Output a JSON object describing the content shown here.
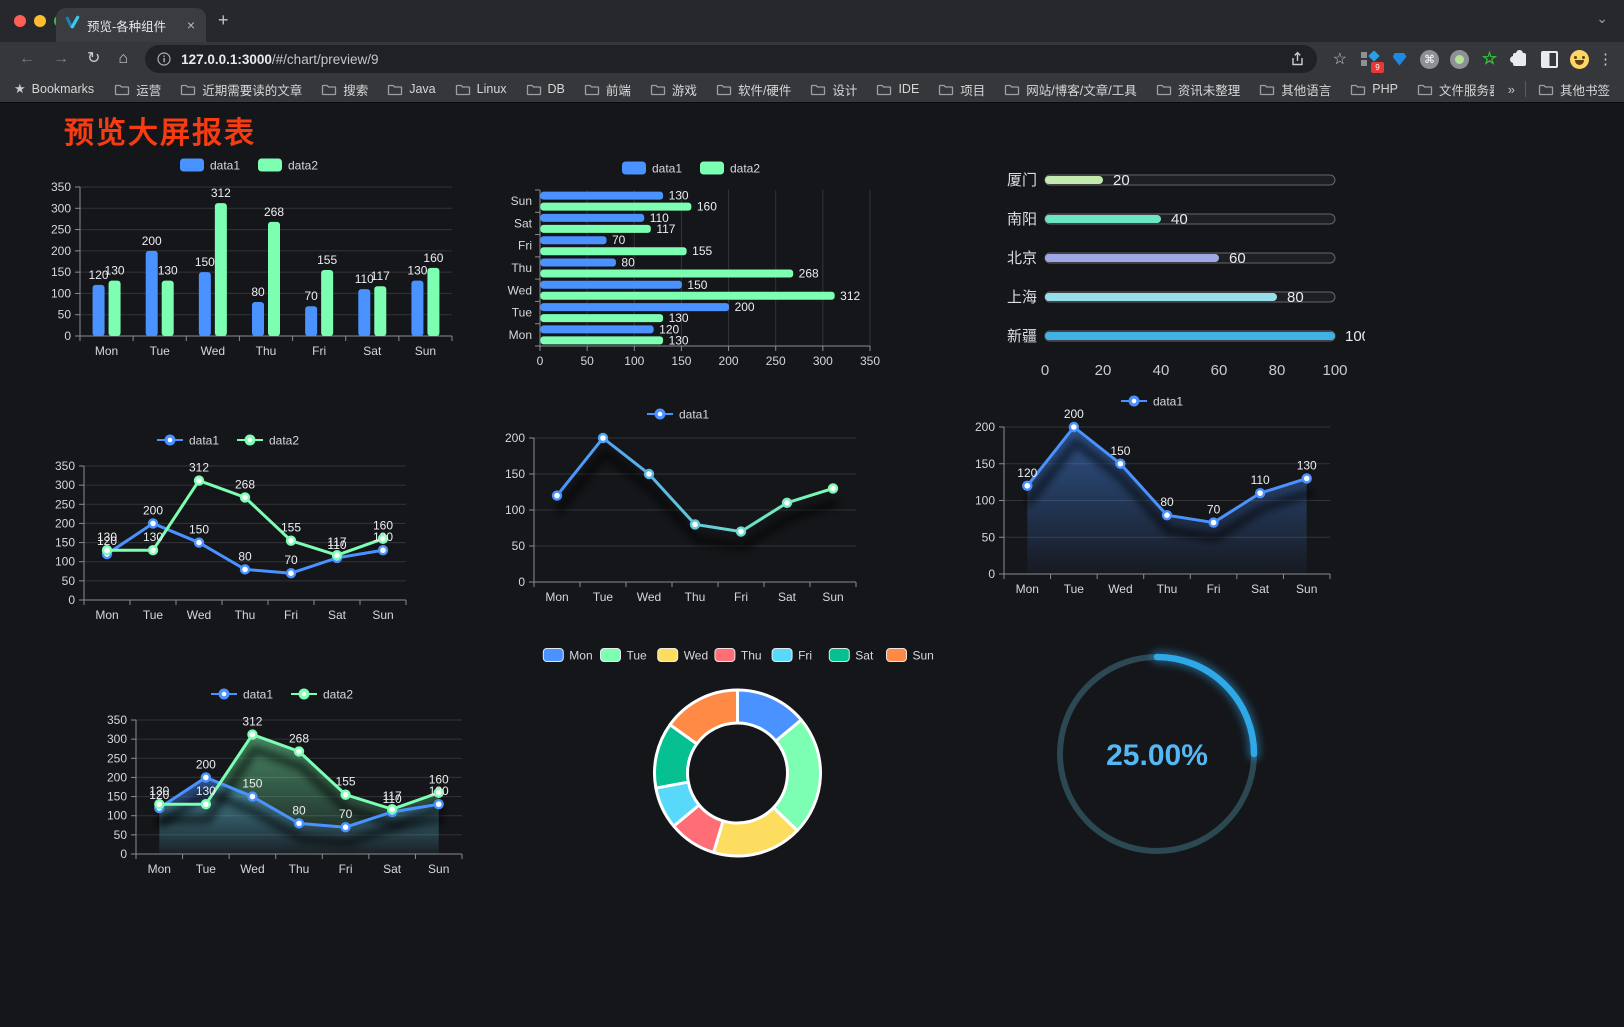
{
  "browser": {
    "traffic_lights": {
      "close": "#ff5f57",
      "minimize": "#febc2e",
      "zoom": "#28c840"
    },
    "tab_title": "预览-各种组件",
    "url_host": "127.0.0.1:3000",
    "url_path": "/#/chart/preview/9",
    "glyphs": {
      "close": "×",
      "plus": "+",
      "chevron": "⌄",
      "back": "←",
      "forward": "→",
      "reload": "↻",
      "home": "⌂",
      "star": "☆",
      "menu": "⋮",
      "overflow": "»",
      "bookmarks_star": "★",
      "cmd": "⌘"
    },
    "extension_badge": "9",
    "bookmarks": {
      "label": "Bookmarks",
      "folders": [
        "运营",
        "近期需要读的文章",
        "搜索",
        "Java",
        "Linux",
        "DB",
        "前端",
        "游戏",
        "软件/硬件",
        "设计",
        "IDE",
        "项目",
        "网站/博客/文章/工具",
        "资讯未整理",
        "其他语言",
        "PHP",
        "文件服务器"
      ],
      "other_label": "其他书签"
    }
  },
  "page": {
    "title": "预览大屏报表",
    "title_color": "#f83b11",
    "background": "#15161a"
  },
  "chart_data": [
    {
      "container": "c1",
      "type": "bar",
      "legend": [
        "data1",
        "data2"
      ],
      "categories": [
        "Mon",
        "Tue",
        "Wed",
        "Thu",
        "Fri",
        "Sat",
        "Sun"
      ],
      "series": [
        {
          "name": "data1",
          "color": "#4992ff",
          "values": [
            120,
            200,
            150,
            80,
            70,
            110,
            130
          ]
        },
        {
          "name": "data2",
          "color": "#7cffb2",
          "values": [
            130,
            130,
            312,
            268,
            155,
            117,
            160
          ]
        }
      ],
      "ylim": [
        0,
        350
      ],
      "ystep": 50,
      "labels": true,
      "grid": true
    },
    {
      "container": "c2",
      "type": "hbar",
      "legend": [
        "data1",
        "data2"
      ],
      "categories": [
        "Mon",
        "Tue",
        "Wed",
        "Thu",
        "Fri",
        "Sat",
        "Sun"
      ],
      "series": [
        {
          "name": "data1",
          "color": "#4992ff",
          "values": [
            120,
            200,
            150,
            80,
            70,
            110,
            130
          ]
        },
        {
          "name": "data2",
          "color": "#7cffb2",
          "values": [
            130,
            130,
            312,
            268,
            155,
            117,
            160
          ]
        }
      ],
      "xlim": [
        0,
        350
      ],
      "xstep": 50,
      "labels": true,
      "grid": true
    },
    {
      "container": "c3",
      "type": "progress",
      "xlim": [
        0,
        100
      ],
      "xticks": [
        0,
        20,
        40,
        60,
        80,
        100
      ],
      "items": [
        {
          "label": "厦门",
          "value": 20,
          "color": "#c4ebad"
        },
        {
          "label": "南阳",
          "value": 40,
          "color": "#6be6c1"
        },
        {
          "label": "北京",
          "value": 60,
          "color": "#a0a7e6"
        },
        {
          "label": "上海",
          "value": 80,
          "color": "#96dee8"
        },
        {
          "label": "新疆",
          "value": 100,
          "color": "#3fb1e3"
        }
      ]
    },
    {
      "container": "c4",
      "type": "line",
      "legend": [
        "data1",
        "data2"
      ],
      "categories": [
        "Mon",
        "Tue",
        "Wed",
        "Thu",
        "Fri",
        "Sat",
        "Sun"
      ],
      "series": [
        {
          "name": "data1",
          "color": "#4992ff",
          "values": [
            120,
            200,
            150,
            80,
            70,
            110,
            130
          ],
          "markers": true,
          "labels": true
        },
        {
          "name": "data2",
          "color": "#7cffb2",
          "values": [
            130,
            130,
            312,
            268,
            155,
            117,
            160
          ],
          "markers": true,
          "labels": true
        }
      ],
      "ylim": [
        0,
        350
      ],
      "ystep": 50,
      "grid": true
    },
    {
      "container": "c5",
      "type": "line",
      "legend": [
        "data1"
      ],
      "categories": [
        "Mon",
        "Tue",
        "Wed",
        "Thu",
        "Fri",
        "Sat",
        "Sun"
      ],
      "series": [
        {
          "name": "data1",
          "color": "#4992ff",
          "gradient": [
            "#4992ff",
            "#7cffb2"
          ],
          "values": [
            120,
            200,
            150,
            80,
            70,
            110,
            130
          ],
          "markers": true,
          "shadow": true
        }
      ],
      "ylim": [
        0,
        200
      ],
      "ystep": 50,
      "grid": true
    },
    {
      "container": "c6",
      "type": "line",
      "legend": [
        "data1"
      ],
      "categories": [
        "Mon",
        "Tue",
        "Wed",
        "Thu",
        "Fri",
        "Sat",
        "Sun"
      ],
      "series": [
        {
          "name": "data1",
          "color": "#4992ff",
          "values": [
            120,
            200,
            150,
            80,
            70,
            110,
            130
          ],
          "area": true,
          "markers": true,
          "labels": true,
          "shadow": true
        }
      ],
      "ylim": [
        0,
        200
      ],
      "ystep": 50,
      "grid": true
    },
    {
      "container": "c7",
      "type": "line",
      "legend": [
        "data1",
        "data2"
      ],
      "categories": [
        "Mon",
        "Tue",
        "Wed",
        "Thu",
        "Fri",
        "Sat",
        "Sun"
      ],
      "series": [
        {
          "name": "data1",
          "color": "#4992ff",
          "values": [
            120,
            200,
            150,
            80,
            70,
            110,
            130
          ],
          "area": true,
          "markers": true,
          "labels": true,
          "shadow": true
        },
        {
          "name": "data2",
          "color": "#7cffb2",
          "values": [
            130,
            130,
            312,
            268,
            155,
            117,
            160
          ],
          "area": true,
          "markers": true,
          "labels": true,
          "shadow": true
        }
      ],
      "ylim": [
        0,
        350
      ],
      "ystep": 50,
      "grid": true
    },
    {
      "container": "c8",
      "type": "donut",
      "labels": [
        "Mon",
        "Tue",
        "Wed",
        "Thu",
        "Fri",
        "Sat",
        "Sun"
      ],
      "values": [
        120,
        200,
        150,
        80,
        70,
        110,
        130
      ],
      "colors": [
        "#4992ff",
        "#7cffb2",
        "#fddd60",
        "#ff6e76",
        "#58d9f9",
        "#05c091",
        "#ff8a45"
      ]
    },
    {
      "container": "c9",
      "type": "gauge",
      "value": 25,
      "display": "25.00%",
      "color": "#2fa8e8",
      "track_color": "#2b4853",
      "text_color": "#54b8f4"
    }
  ]
}
